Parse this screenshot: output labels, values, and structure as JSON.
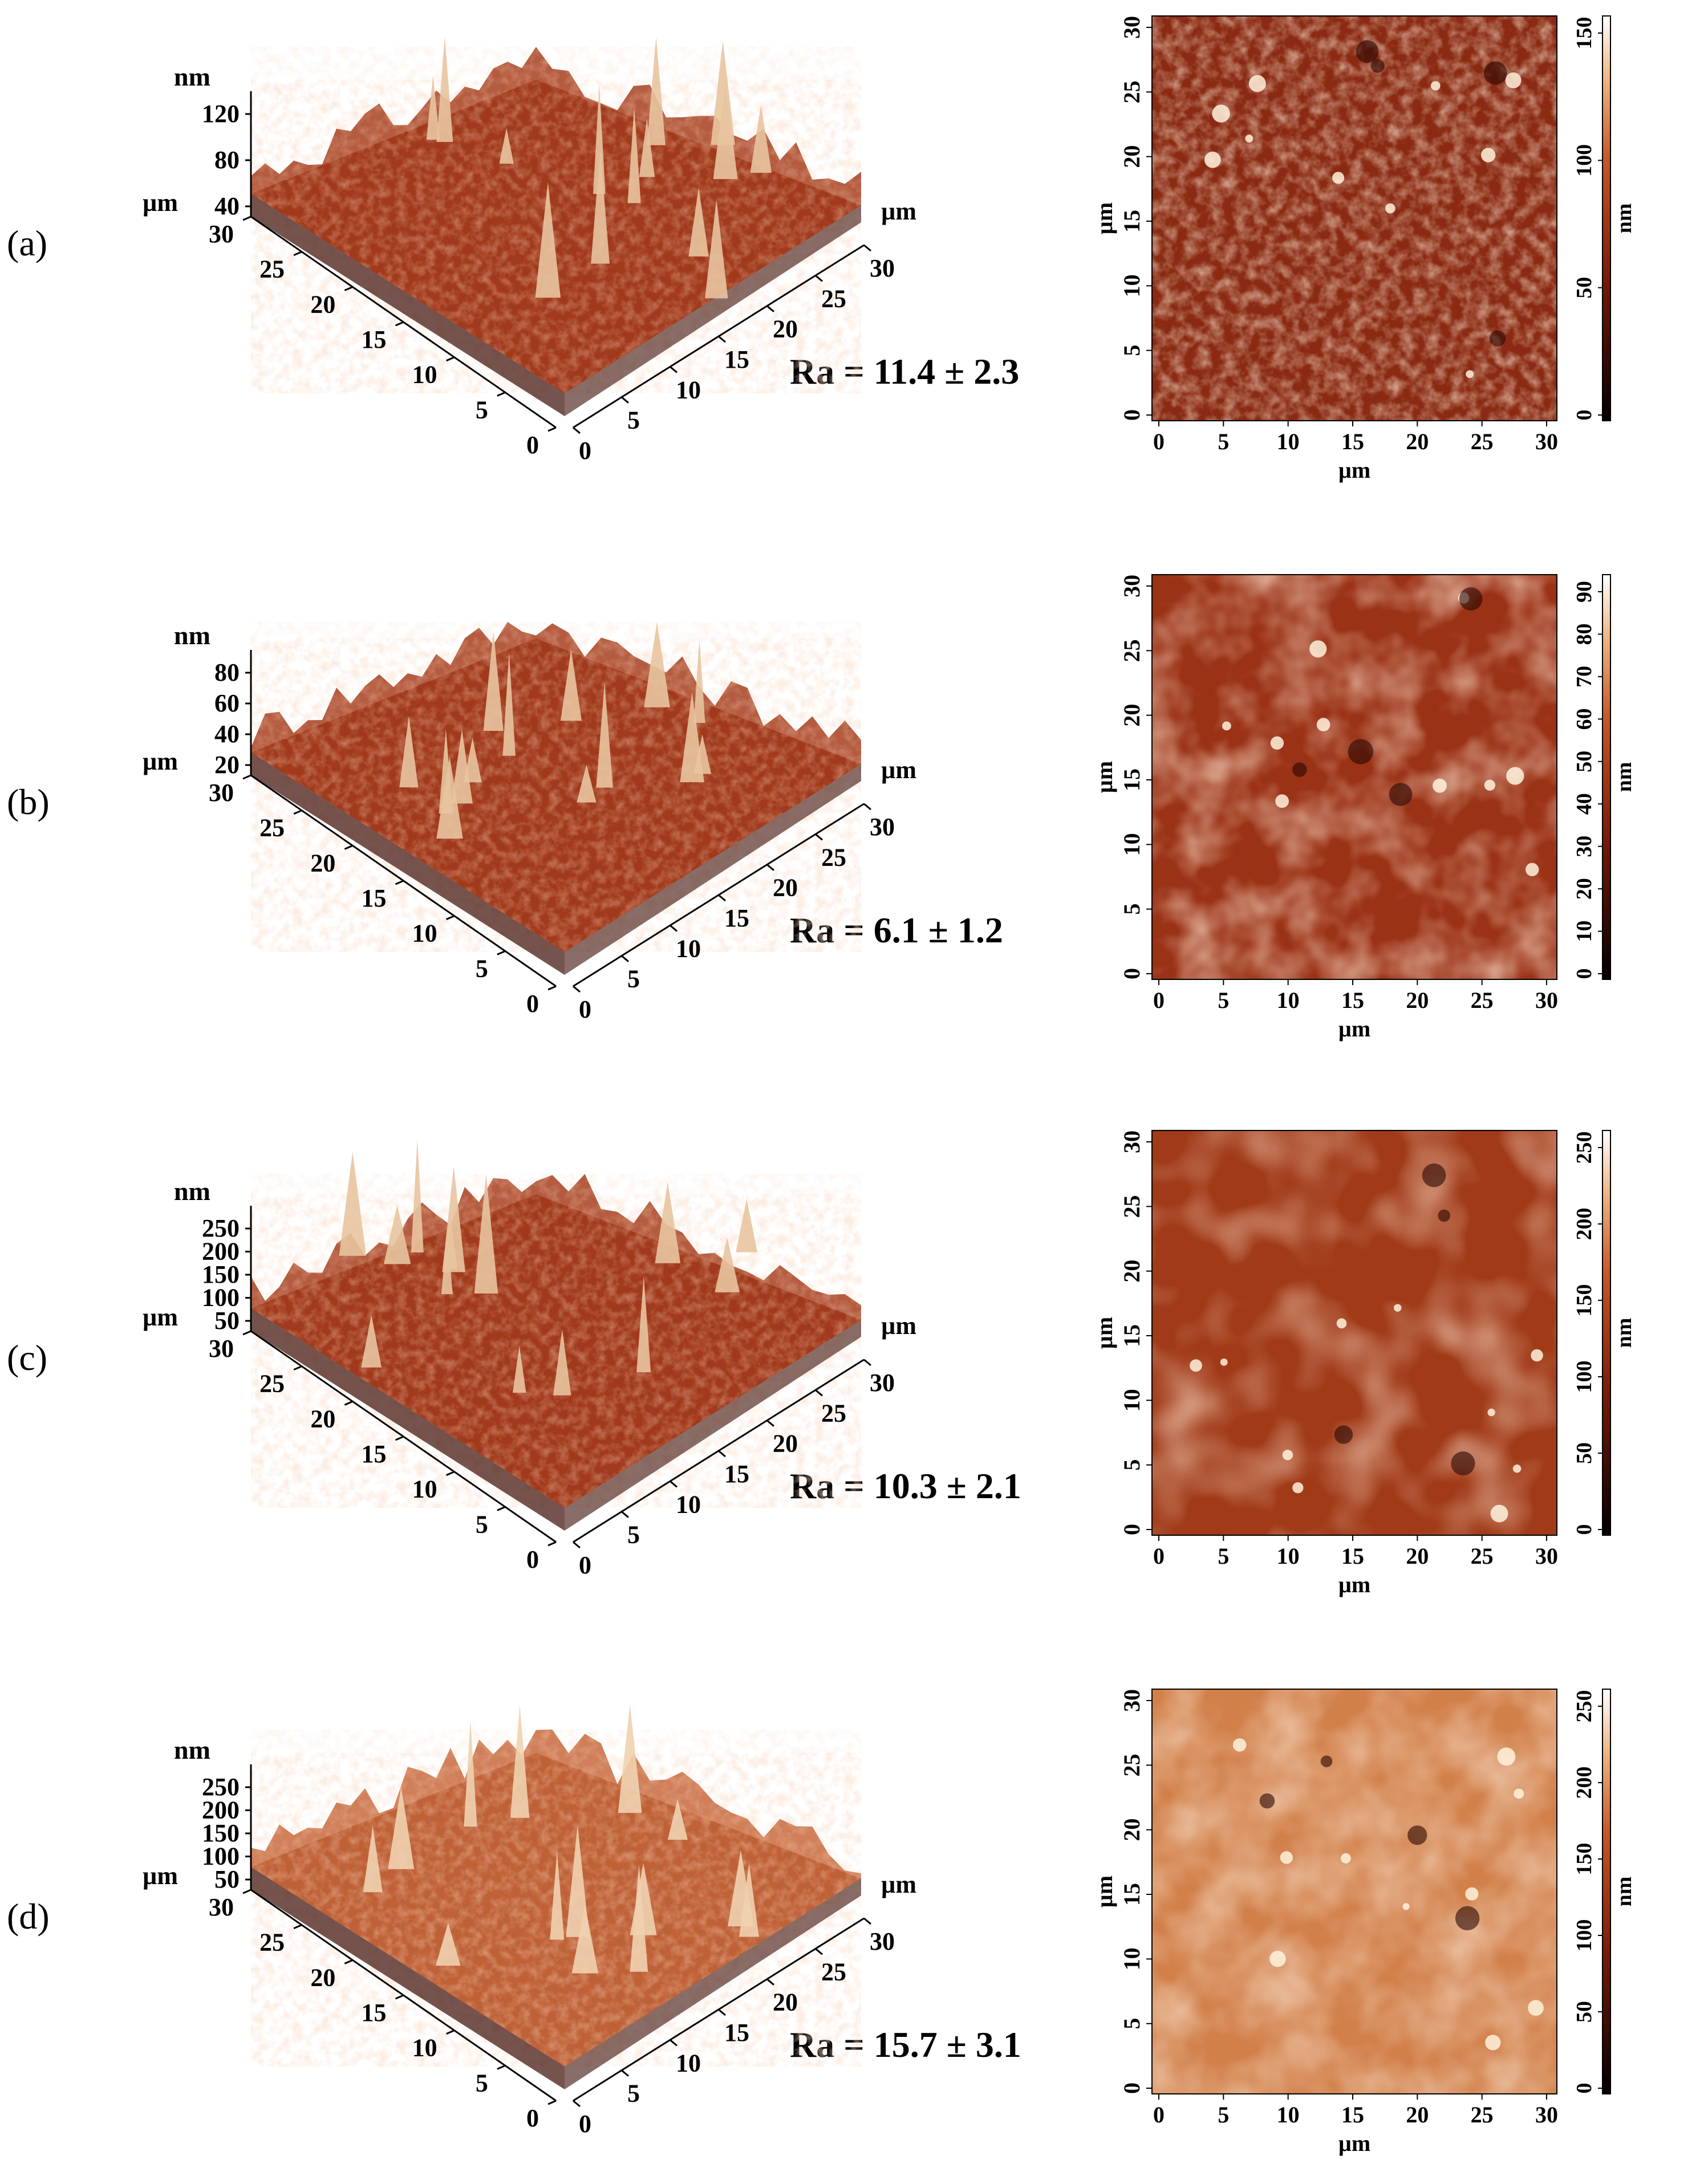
{
  "panels": [
    {
      "id": "a",
      "label": "(a)",
      "ra_text": "Ra = 11.4 ± 2.3",
      "surface_3d": {
        "z_unit": "nm",
        "z_ticks": [
          "120",
          "80",
          "40"
        ],
        "left_axis_unit": "µm",
        "left_axis_ticks": [
          "30",
          "25",
          "20",
          "15",
          "10",
          "5",
          "0"
        ],
        "right_axis_unit": "µm",
        "right_axis_ticks": [
          "0",
          "5",
          "10",
          "15",
          "20",
          "25",
          "30"
        ],
        "colors": {
          "base": "#7a1f0f",
          "mid": "#a8401f",
          "high": "#e8c4a0"
        }
      },
      "height_map": {
        "x_label": "µm",
        "y_label": "µm",
        "x_ticks": [
          "0",
          "5",
          "10",
          "15",
          "20",
          "25",
          "30"
        ],
        "y_ticks": [
          "0",
          "5",
          "10",
          "15",
          "20",
          "25",
          "30"
        ],
        "colorbar_unit": "nm",
        "colorbar_ticks": [
          "0",
          "50",
          "100",
          "150"
        ],
        "base_color": "#8a2a12"
      }
    },
    {
      "id": "b",
      "label": "(b)",
      "ra_text": "Ra = 6.1 ± 1.2",
      "surface_3d": {
        "z_unit": "nm",
        "z_ticks": [
          "80",
          "60",
          "40",
          "20"
        ],
        "left_axis_unit": "µm",
        "left_axis_ticks": [
          "30",
          "25",
          "20",
          "15",
          "10",
          "5",
          "0"
        ],
        "right_axis_unit": "µm",
        "right_axis_ticks": [
          "0",
          "5",
          "10",
          "15",
          "20",
          "25",
          "30"
        ],
        "colors": {
          "base": "#7a1f0f",
          "mid": "#a8401f",
          "high": "#e8c4a0"
        }
      },
      "height_map": {
        "x_label": "µm",
        "y_label": "µm",
        "x_ticks": [
          "0",
          "5",
          "10",
          "15",
          "20",
          "25",
          "30"
        ],
        "y_ticks": [
          "0",
          "5",
          "10",
          "15",
          "20",
          "25",
          "30"
        ],
        "colorbar_unit": "nm",
        "colorbar_ticks": [
          "0",
          "10",
          "20",
          "30",
          "40",
          "50",
          "60",
          "70",
          "80",
          "90"
        ],
        "base_color": "#9a3216"
      }
    },
    {
      "id": "c",
      "label": "(c)",
      "ra_text": "Ra = 10.3 ± 2.1",
      "surface_3d": {
        "z_unit": "nm",
        "z_ticks": [
          "250",
          "200",
          "150",
          "100",
          "50"
        ],
        "left_axis_unit": "µm",
        "left_axis_ticks": [
          "30",
          "25",
          "20",
          "15",
          "10",
          "5",
          "0"
        ],
        "right_axis_unit": "µm",
        "right_axis_ticks": [
          "0",
          "5",
          "10",
          "15",
          "20",
          "25",
          "30"
        ],
        "colors": {
          "base": "#7a1f0f",
          "mid": "#a8401f",
          "high": "#e8c4a0"
        }
      },
      "height_map": {
        "x_label": "µm",
        "y_label": "µm",
        "x_ticks": [
          "0",
          "5",
          "10",
          "15",
          "20",
          "25",
          "30"
        ],
        "y_ticks": [
          "0",
          "5",
          "10",
          "15",
          "20",
          "25",
          "30"
        ],
        "colorbar_unit": "nm",
        "colorbar_ticks": [
          "0",
          "50",
          "100",
          "150",
          "200",
          "250"
        ],
        "base_color": "#a03a18"
      }
    },
    {
      "id": "d",
      "label": "(d)",
      "ra_text": "Ra = 15.7 ± 3.1",
      "surface_3d": {
        "z_unit": "nm",
        "z_ticks": [
          "250",
          "200",
          "150",
          "100",
          "50"
        ],
        "left_axis_unit": "µm",
        "left_axis_ticks": [
          "30",
          "25",
          "20",
          "15",
          "10",
          "5",
          "0"
        ],
        "right_axis_unit": "µm",
        "right_axis_ticks": [
          "0",
          "5",
          "10",
          "15",
          "20",
          "25",
          "30"
        ],
        "colors": {
          "base": "#8a3a1e",
          "mid": "#c8683c",
          "high": "#f0d2b0"
        }
      },
      "height_map": {
        "x_label": "µm",
        "y_label": "µm",
        "x_ticks": [
          "0",
          "5",
          "10",
          "15",
          "20",
          "25",
          "30"
        ],
        "y_ticks": [
          "0",
          "5",
          "10",
          "15",
          "20",
          "25",
          "30"
        ],
        "colorbar_unit": "nm",
        "colorbar_ticks": [
          "0",
          "50",
          "100",
          "150",
          "200",
          "250"
        ],
        "base_color": "#d2804a"
      }
    }
  ]
}
